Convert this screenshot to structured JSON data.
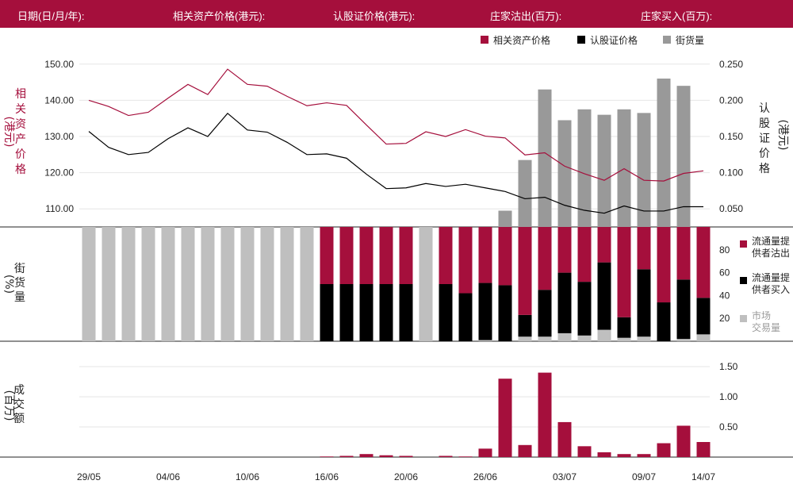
{
  "header": {
    "date_label": "日期(日/月/年):",
    "underlying_label": "相关资产价格(港元):",
    "warrant_label": "认股证价格(港元):",
    "sell_label": "庄家沽出(百万):",
    "buy_label": "庄家买入(百万):"
  },
  "colors": {
    "header_bg": "#a50f3c",
    "underlying": "#a50f3c",
    "warrant": "#000000",
    "outstanding": "#999999",
    "sell": "#a50f3c",
    "buy": "#000000",
    "market": "#bfbfbf"
  },
  "chart_data": [
    {
      "type": "line",
      "legend_position": "top-right",
      "legend": [
        "相关资产价格",
        "认股证价格",
        "街货量"
      ],
      "y_left_label": [
        "相",
        "关",
        "资",
        "产",
        "价",
        "格"
      ],
      "y_left_unit": "港元",
      "y_right_label": [
        "认",
        "股",
        "证",
        "价",
        "格"
      ],
      "y_right_unit": "港元",
      "y_left_ticks": [
        "150.00",
        "140.00",
        "130.00",
        "120.00",
        "110.00"
      ],
      "y_right_ticks": [
        "0.250",
        "0.200",
        "0.150",
        "0.100",
        "0.050"
      ],
      "ylim_left": [
        105,
        155
      ],
      "ylim_right": [
        0.025,
        0.275
      ],
      "ylim_outstanding": [
        0,
        100
      ],
      "grid": true,
      "series": [
        {
          "name": "相关资产价格",
          "axis": "left",
          "values": [
            140.0,
            138.3,
            135.8,
            136.7,
            140.6,
            144.4,
            141.6,
            148.6,
            144.4,
            143.9,
            141.1,
            138.5,
            139.3,
            138.6,
            133.2,
            127.9,
            128.1,
            131.3,
            130.0,
            131.9,
            130.1,
            129.6,
            124.9,
            125.5,
            121.8,
            119.7,
            117.9,
            121.1,
            117.9,
            117.7,
            119.8,
            120.5
          ]
        },
        {
          "name": "认股证价格",
          "axis": "right",
          "values": [
            0.157,
            0.135,
            0.125,
            0.128,
            0.147,
            0.162,
            0.15,
            0.182,
            0.159,
            0.156,
            0.142,
            0.125,
            0.126,
            0.12,
            0.098,
            0.078,
            0.079,
            0.085,
            0.081,
            0.084,
            0.079,
            0.074,
            0.064,
            0.066,
            0.055,
            0.048,
            0.044,
            0.054,
            0.047,
            0.047,
            0.053,
            0.053
          ]
        },
        {
          "name": "街货量",
          "axis": "none",
          "values": [
            null,
            null,
            null,
            null,
            null,
            null,
            null,
            null,
            null,
            null,
            null,
            null,
            null,
            null,
            null,
            null,
            null,
            null,
            null,
            null,
            null,
            9,
            37,
            76,
            59,
            65,
            62,
            65,
            63,
            82,
            78,
            null
          ]
        }
      ]
    },
    {
      "type": "bar",
      "stacked": true,
      "legend_position": "right",
      "legend": [
        [
          "流通量提",
          "供者沽出"
        ],
        [
          "流通量提",
          "供者买入"
        ],
        [
          "市场",
          "交易量"
        ]
      ],
      "y_label": [
        "街",
        "货",
        "量"
      ],
      "y_unit": "%",
      "y_ticks": [
        "80",
        "60",
        "40",
        "20"
      ],
      "ylim": [
        0,
        100
      ],
      "series": [
        {
          "name": "流通量提供者沽出",
          "values": [
            0,
            0,
            0,
            0,
            0,
            0,
            0,
            0,
            0,
            0,
            0,
            0,
            50,
            50,
            50,
            50,
            50,
            0,
            50,
            58,
            49,
            51,
            77,
            55,
            40,
            48,
            31,
            79,
            37,
            66,
            46,
            62
          ]
        },
        {
          "name": "流通量提供者买入",
          "values": [
            0,
            0,
            0,
            0,
            0,
            0,
            0,
            0,
            0,
            0,
            0,
            0,
            50,
            50,
            50,
            50,
            50,
            0,
            50,
            42,
            50,
            49,
            19,
            41,
            53,
            47,
            59,
            18,
            59,
            34,
            52,
            32
          ]
        },
        {
          "name": "市场交易量",
          "values": [
            100,
            100,
            100,
            100,
            100,
            100,
            100,
            100,
            100,
            100,
            100,
            100,
            0,
            0,
            0,
            0,
            0,
            100,
            0,
            0,
            1,
            0,
            4,
            4,
            7,
            5,
            10,
            3,
            4,
            0,
            2,
            6
          ]
        }
      ]
    },
    {
      "type": "bar",
      "y_label": [
        "成",
        "交",
        "额"
      ],
      "y_unit": "百万",
      "y_ticks": [
        "1.50",
        "1.00",
        "0.50"
      ],
      "ylim": [
        0,
        1.5
      ],
      "series": [
        {
          "name": "成交额",
          "values": [
            0,
            0,
            0,
            0,
            0,
            0,
            0,
            0,
            0,
            0,
            0,
            0,
            0.01,
            0.02,
            0.05,
            0.03,
            0.02,
            0,
            0.02,
            0.01,
            0.14,
            1.3,
            0.2,
            1.4,
            0.58,
            0.18,
            0.08,
            0.05,
            0.05,
            0.23,
            0.52,
            0.25
          ]
        }
      ]
    }
  ],
  "x_axis": {
    "labels": [
      "29/05",
      "04/06",
      "10/06",
      "16/06",
      "20/06",
      "26/06",
      "03/07",
      "09/07",
      "14/07"
    ],
    "label_indices": [
      0,
      4,
      8,
      12,
      16,
      20,
      24,
      28,
      31
    ]
  }
}
